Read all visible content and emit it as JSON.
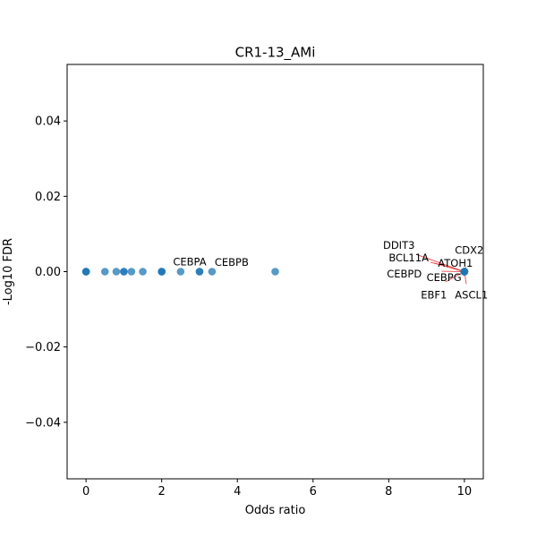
{
  "chart_data": {
    "type": "scatter",
    "title": "CR1-13_AMi",
    "xlabel": "Odds ratio",
    "ylabel": "-Log10 FDR",
    "xlim": [
      -0.5,
      10.5
    ],
    "ylim": [
      -0.055,
      0.055
    ],
    "xticks": [
      0,
      2,
      4,
      6,
      8,
      10
    ],
    "xtick_labels": [
      "0",
      "2",
      "4",
      "6",
      "8",
      "10"
    ],
    "yticks": [
      -0.04,
      -0.02,
      0.0,
      0.02,
      0.04
    ],
    "ytick_labels": [
      "−0.04",
      "−0.02",
      "0.00",
      "0.02",
      "0.04"
    ],
    "grid": false,
    "point_color": "#1f77b4",
    "leader_color": "#e8474a",
    "points": [
      {
        "x": 0,
        "y": 0
      },
      {
        "x": 0,
        "y": 0
      },
      {
        "x": 0,
        "y": 0
      },
      {
        "x": 0.5,
        "y": 0
      },
      {
        "x": 0.8,
        "y": 0
      },
      {
        "x": 1,
        "y": 0
      },
      {
        "x": 1,
        "y": 0
      },
      {
        "x": 1.2,
        "y": 0
      },
      {
        "x": 1.5,
        "y": 0
      },
      {
        "x": 2,
        "y": 0
      },
      {
        "x": 2,
        "y": 0
      },
      {
        "x": 2,
        "y": 0
      },
      {
        "x": 2.5,
        "y": 0
      },
      {
        "x": 3,
        "y": 0
      },
      {
        "x": 3,
        "y": 0
      },
      {
        "x": 3.33,
        "y": 0
      },
      {
        "x": 5,
        "y": 0
      },
      {
        "x": 10,
        "y": 0
      },
      {
        "x": 10,
        "y": 0
      },
      {
        "x": 10,
        "y": 0
      },
      {
        "x": 10,
        "y": 0
      },
      {
        "x": 10,
        "y": 0
      },
      {
        "x": 10,
        "y": 0
      },
      {
        "x": 10,
        "y": 0
      },
      {
        "x": 10,
        "y": 0
      },
      {
        "x": 10,
        "y": 0
      }
    ],
    "annotations": [
      {
        "text": "CEBPA",
        "x": 2.3,
        "y": 0.0017,
        "anchor": "start",
        "px": 2.5,
        "py": 0
      },
      {
        "text": "CEBPB",
        "x": 3.4,
        "y": 0.0015,
        "anchor": "start",
        "px": 3.33,
        "py": 0
      },
      {
        "text": "DDIT3",
        "x": 7.85,
        "y": 0.0061,
        "anchor": "start",
        "px": 10,
        "py": 0
      },
      {
        "text": "CDX2",
        "x": 9.75,
        "y": 0.0047,
        "anchor": "start",
        "px": 10,
        "py": 0
      },
      {
        "text": "BCL11A",
        "x": 8.0,
        "y": 0.0027,
        "anchor": "start",
        "px": 10,
        "py": 0
      },
      {
        "text": "ATOH1",
        "x": 9.3,
        "y": 0.0013,
        "anchor": "start",
        "px": 10,
        "py": 0
      },
      {
        "text": "CEBPD",
        "x": 7.95,
        "y": -0.0015,
        "anchor": "start",
        "px": 10,
        "py": 0
      },
      {
        "text": "CEBPG",
        "x": 9.0,
        "y": -0.0025,
        "anchor": "start",
        "px": 10,
        "py": 0
      },
      {
        "text": "EBF1",
        "x": 8.85,
        "y": -0.0071,
        "anchor": "start",
        "px": 10,
        "py": 0
      },
      {
        "text": "ASCL1",
        "x": 9.75,
        "y": -0.0071,
        "anchor": "start",
        "px": 10,
        "py": 0
      }
    ],
    "leaders": [
      {
        "x1": 8.75,
        "y1": 0.0045,
        "x2": 10,
        "y2": 0
      },
      {
        "x1": 9.1,
        "y1": 0.0025,
        "x2": 10,
        "y2": 0
      },
      {
        "x1": 9.2,
        "y1": 0.0023,
        "x2": 10,
        "y2": 0
      },
      {
        "x1": 9.4,
        "y1": 0.0001,
        "x2": 10,
        "y2": 0
      },
      {
        "x1": 9.5,
        "y1": -0.0027,
        "x2": 10,
        "y2": 0
      },
      {
        "x1": 10.05,
        "y1": -0.0033,
        "x2": 10,
        "y2": 0
      },
      {
        "x1": 10.05,
        "y1": 0.0012,
        "x2": 10,
        "y2": 0
      }
    ]
  }
}
